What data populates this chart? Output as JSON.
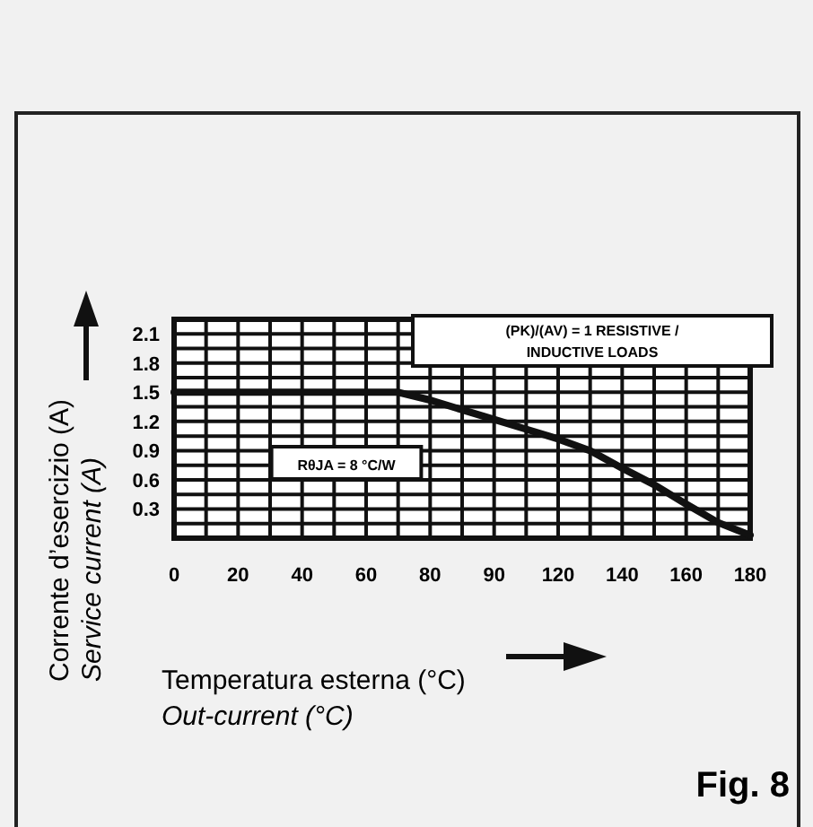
{
  "chart_data": {
    "type": "line",
    "xlabel": "Temperatura esterna (°C)\nOut-current (°C)",
    "ylabel": "Corrente d’esercizio (A)\nService current (A)",
    "categories": [
      "0",
      null,
      "20",
      null,
      "40",
      null,
      "60",
      null,
      "80",
      null,
      "90",
      null,
      "120",
      null,
      "140",
      null,
      "160",
      null,
      "180"
    ],
    "series": [
      {
        "color": "#111111",
        "values": [
          1.5,
          1.5,
          1.5,
          1.5,
          1.5,
          1.5,
          1.5,
          1.5,
          1.42,
          1.32,
          1.22,
          1.12,
          1.02,
          0.9,
          0.72,
          0.55,
          0.35,
          0.16,
          0.03
        ]
      }
    ],
    "ylim": [
      0,
      2.25
    ],
    "yticks": [
      0.3,
      0.6,
      0.9,
      1.2,
      1.5,
      1.8,
      2.1
    ],
    "grid": true,
    "marker": "none",
    "line_style": "solid",
    "annotations": [
      "(PK)/(AV) = 1 RESISTIVE / INDUCTIVE LOADS",
      "RθJA = 8 °C/W",
      "Fig. 8"
    ]
  }
}
